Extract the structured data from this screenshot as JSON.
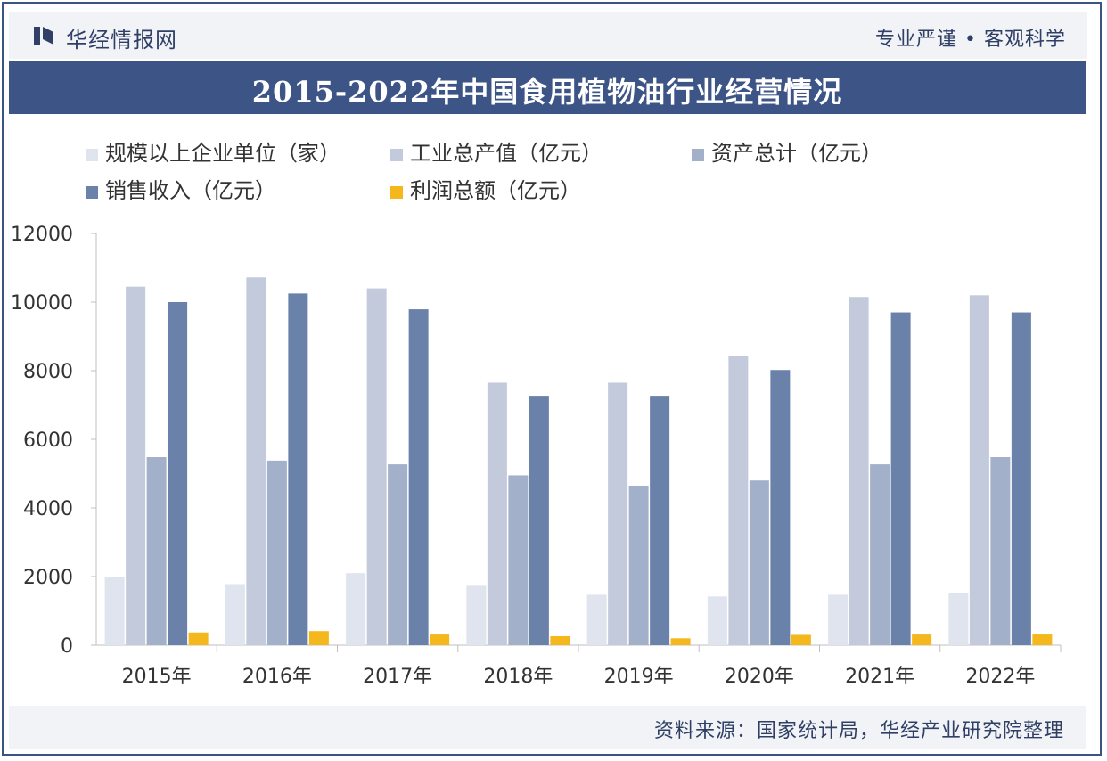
{
  "header": {
    "brand": "华经情报网",
    "slogan": "专业严谨 • 客观科学"
  },
  "title": "2015-2022年中国食用植物油行业经营情况",
  "footer": {
    "source": "资料来源：国家统计局，华经产业研究院整理"
  },
  "colors": {
    "frame": "#3b5583",
    "title_bg": "#3c5486",
    "header_bg": "#f1f3f7"
  },
  "chart_data": {
    "type": "bar",
    "categories": [
      "2015年",
      "2016年",
      "2017年",
      "2018年",
      "2019年",
      "2020年",
      "2021年",
      "2022年"
    ],
    "series": [
      {
        "name": "规模以上企业单位（家）",
        "color": "#dfe4ee",
        "values": [
          2000,
          1780,
          2100,
          1730,
          1470,
          1420,
          1470,
          1530
        ]
      },
      {
        "name": "工业总产值（亿元）",
        "color": "#c2cadb",
        "values": [
          10450,
          10720,
          10400,
          7650,
          7650,
          8420,
          10150,
          10200
        ]
      },
      {
        "name": "资产总计（亿元）",
        "color": "#a2b0c9",
        "values": [
          5480,
          5380,
          5270,
          4950,
          4650,
          4800,
          5270,
          5480
        ]
      },
      {
        "name": "销售收入（亿元）",
        "color": "#6a81a9",
        "values": [
          10000,
          10250,
          9790,
          7270,
          7270,
          8020,
          9700,
          9700
        ]
      },
      {
        "name": "利润总额（亿元）",
        "color": "#f4b81c",
        "values": [
          370,
          410,
          310,
          260,
          200,
          300,
          310,
          310
        ]
      }
    ],
    "y_ticks": [
      "0",
      "2000",
      "4000",
      "6000",
      "8000",
      "10000",
      "12000"
    ],
    "ylim": [
      0,
      12000
    ],
    "grid": false,
    "legend_position": "top-left"
  }
}
